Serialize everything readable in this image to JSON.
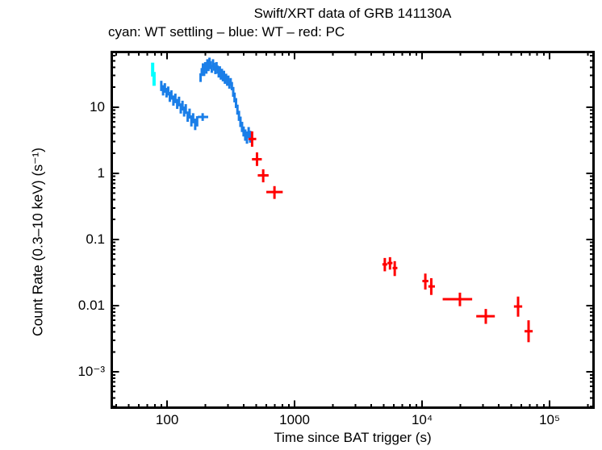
{
  "title": "Swift/XRT data of GRB 141130A",
  "subtitle": "cyan: WT settling – blue: WT – red: PC",
  "x_axis_label": "Time since BAT trigger (s)",
  "y_axis_label": "Count Rate (0.3–10 keV) (s⁻¹)",
  "colors": {
    "wt_settling": "#00ffff",
    "wt": "#1a7ee8",
    "pc": "#ff0000",
    "axis": "#000000",
    "background": "#ffffff"
  },
  "axes": {
    "x": {
      "scale": "log",
      "min": 36,
      "max": 226000,
      "major_ticks": [
        100,
        1000,
        10000,
        100000
      ],
      "tick_labels": [
        "100",
        "1000",
        "10⁴",
        "10⁵"
      ]
    },
    "y": {
      "scale": "log",
      "min": 0.000275,
      "max": 71,
      "major_ticks": [
        10,
        1,
        0.1,
        0.01,
        0.001
      ],
      "tick_labels": [
        "10",
        "1",
        "0.1",
        "0.01",
        "10⁻³"
      ]
    }
  },
  "chart_data": {
    "type": "scatter",
    "title": "Swift/XRT data of GRB 141130A",
    "xlabel": "Time since BAT trigger (s)",
    "ylabel": "Count Rate (0.3-10 keV) (s^-1)",
    "xlim": [
      36,
      226000
    ],
    "ylim": [
      0.000275,
      71
    ],
    "grid": false,
    "legend_position": "subtitle-caption",
    "point_format": "[t, rate, t_lo, t_hi, rate_lo, rate_hi]",
    "series": [
      {
        "name": "WT settling",
        "color_key": "wt_settling",
        "stroke_width": 4,
        "points": [
          [
            77,
            37,
            75.5,
            78.5,
            29,
            47
          ],
          [
            79,
            27,
            77.5,
            80.5,
            21,
            34
          ]
        ]
      },
      {
        "name": "WT",
        "color_key": "wt",
        "stroke_width": 3,
        "points": [
          [
            90,
            21,
            89,
            91,
            17.5,
            25
          ],
          [
            93,
            18,
            92,
            94,
            15,
            21.5
          ],
          [
            96,
            19.5,
            95,
            97,
            16.5,
            23
          ],
          [
            99,
            16.5,
            98,
            100,
            14,
            19.5
          ],
          [
            102,
            17.5,
            101,
            103,
            15,
            20.5
          ],
          [
            105,
            14.5,
            104,
            106,
            12,
            17
          ],
          [
            108,
            15.5,
            107,
            109,
            13,
            18
          ],
          [
            112,
            12.5,
            111,
            113,
            10.5,
            15
          ],
          [
            116,
            13.5,
            115,
            117,
            11.5,
            16
          ],
          [
            120,
            11.2,
            119,
            121,
            9.4,
            13.3
          ],
          [
            124,
            12.2,
            123,
            125,
            10.3,
            14.4
          ],
          [
            128,
            9.6,
            127,
            129,
            8,
            11.4
          ],
          [
            132,
            10.6,
            131,
            133,
            8.9,
            12.5
          ],
          [
            136,
            8.6,
            135,
            137,
            7.2,
            10.2
          ],
          [
            140,
            9.4,
            139,
            141,
            7.9,
            11.1
          ],
          [
            145,
            7.2,
            143.5,
            146.5,
            6,
            8.6
          ],
          [
            150,
            8.0,
            148.5,
            151.5,
            6.7,
            9.5
          ],
          [
            155,
            6.2,
            153.5,
            156.5,
            5.1,
            7.5
          ],
          [
            160,
            6.8,
            158.5,
            161.5,
            5.7,
            8.1
          ],
          [
            166,
            5.5,
            164,
            168,
            4.5,
            6.7
          ],
          [
            172,
            6.1,
            170,
            174,
            5.1,
            7.3
          ],
          [
            190,
            7.1,
            174,
            210,
            6.2,
            8.1
          ],
          [
            183,
            28,
            181,
            185,
            24,
            32.5
          ],
          [
            187,
            34,
            185,
            189,
            29.5,
            39
          ],
          [
            191,
            40,
            189,
            193,
            35,
            46
          ],
          [
            195,
            34,
            193,
            197,
            29.5,
            39
          ],
          [
            199,
            42,
            197,
            201,
            36.5,
            48
          ],
          [
            203,
            37,
            201,
            205,
            32,
            42.5
          ],
          [
            207,
            46,
            205,
            209,
            40,
            53
          ],
          [
            211,
            40,
            209,
            213,
            35,
            46
          ],
          [
            215,
            49,
            213,
            217,
            42.5,
            56
          ],
          [
            219,
            43,
            217,
            221,
            37.5,
            49.5
          ],
          [
            224,
            38,
            222,
            226,
            33,
            43.5
          ],
          [
            229,
            46,
            227,
            231,
            40,
            53
          ],
          [
            234,
            41,
            232,
            236,
            35.5,
            47
          ],
          [
            239,
            36,
            237,
            241,
            31.5,
            41.5
          ],
          [
            244,
            42,
            242,
            246,
            36.5,
            48
          ],
          [
            249,
            37,
            247,
            251,
            32,
            42.5
          ],
          [
            254,
            32,
            252,
            256,
            28,
            36.5
          ],
          [
            259,
            36,
            257,
            261,
            31.5,
            41.5
          ],
          [
            264,
            30,
            262,
            266,
            26,
            34.5
          ],
          [
            269,
            33,
            267,
            271,
            28.5,
            38
          ],
          [
            274,
            28,
            272,
            276,
            24.5,
            32
          ],
          [
            279,
            31,
            277,
            281,
            27,
            35.5
          ],
          [
            284,
            26,
            282,
            286,
            22.5,
            30
          ],
          [
            290,
            28,
            288,
            292,
            24.5,
            32
          ],
          [
            296,
            24,
            294,
            298,
            21,
            27.5
          ],
          [
            302,
            26,
            300,
            304,
            22.5,
            30
          ],
          [
            308,
            22,
            306,
            310,
            19,
            25.5
          ],
          [
            315,
            24,
            312.5,
            317.5,
            21,
            27.5
          ],
          [
            322,
            21,
            319.5,
            324.5,
            18,
            24
          ],
          [
            330,
            17,
            327,
            333,
            14.3,
            20.2
          ],
          [
            338,
            14,
            335,
            341,
            11.8,
            16.6
          ],
          [
            347,
            11.5,
            344,
            350,
            9.7,
            13.7
          ],
          [
            356,
            9.2,
            353,
            359,
            7.7,
            10.9
          ],
          [
            366,
            7.4,
            363,
            369,
            6.2,
            8.8
          ],
          [
            376,
            6.0,
            372.5,
            379.5,
            5.0,
            7.2
          ],
          [
            387,
            5.0,
            383.5,
            390.5,
            4.2,
            6.0
          ],
          [
            398,
            4.3,
            394.5,
            401.5,
            3.6,
            5.1
          ],
          [
            410,
            3.8,
            406,
            414,
            3.1,
            4.6
          ],
          [
            423,
            3.5,
            419,
            427,
            2.8,
            4.3
          ],
          [
            436,
            4.1,
            432,
            440,
            3.4,
            5.0
          ],
          [
            448,
            3.6,
            444,
            452,
            2.9,
            4.4
          ]
        ]
      },
      {
        "name": "PC",
        "color_key": "pc",
        "stroke_width": 3,
        "points": [
          [
            464,
            3.3,
            435,
            500,
            2.52,
            4.3
          ],
          [
            507,
            1.63,
            463,
            553,
            1.29,
            2.07
          ],
          [
            567,
            0.93,
            514,
            625,
            0.73,
            1.15
          ],
          [
            695,
            0.52,
            600,
            807,
            0.41,
            0.64
          ],
          [
            5100,
            0.042,
            4880,
            5330,
            0.033,
            0.0525
          ],
          [
            5600,
            0.044,
            5350,
            5860,
            0.035,
            0.054
          ],
          [
            6100,
            0.037,
            5870,
            6400,
            0.028,
            0.047
          ],
          [
            10600,
            0.0235,
            10050,
            11200,
            0.0175,
            0.0305
          ],
          [
            11800,
            0.0195,
            11200,
            12600,
            0.0145,
            0.026
          ],
          [
            19800,
            0.0125,
            14500,
            24700,
            0.0098,
            0.0157
          ],
          [
            31600,
            0.0069,
            26600,
            37200,
            0.0053,
            0.0089
          ],
          [
            56600,
            0.0097,
            52500,
            61000,
            0.0068,
            0.0137
          ],
          [
            68400,
            0.0041,
            63600,
            73700,
            0.0028,
            0.006
          ]
        ]
      }
    ]
  }
}
